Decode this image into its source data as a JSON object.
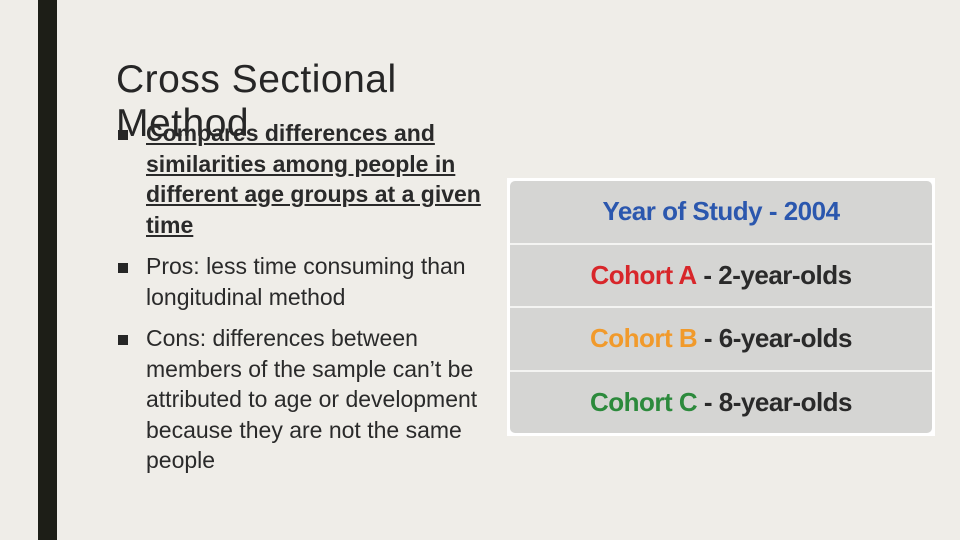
{
  "slide": {
    "title": "Cross Sectional Method",
    "bullets": [
      {
        "text": "Compares differences and similarities among people in different age groups at a given time"
      },
      {
        "text": "Pros: less time consuming than longitudinal method"
      },
      {
        "text": "Cons: differences between members of the sample can’t be attributed to age or development because they are not the same people"
      }
    ]
  },
  "table": {
    "header": "Year of Study - 2004",
    "rows": [
      {
        "cohort": "Cohort A",
        "age": " - 2-year-olds"
      },
      {
        "cohort": "Cohort B",
        "age": " - 6-year-olds"
      },
      {
        "cohort": "Cohort C",
        "age": " - 8-year-olds"
      }
    ]
  },
  "colors": {
    "header": "#2b57ae",
    "cohort_a": "#d8262a",
    "cohort_b": "#f19a2b",
    "cohort_c": "#2c8a3c"
  }
}
